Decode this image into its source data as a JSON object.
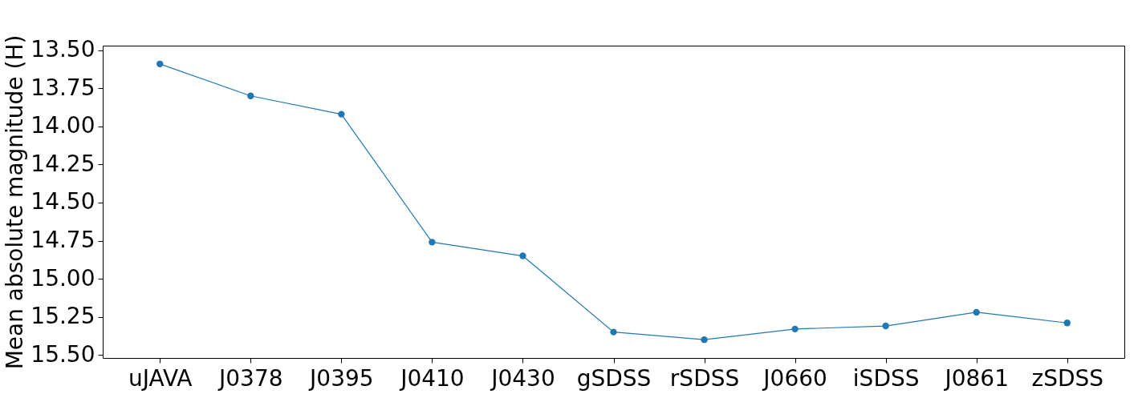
{
  "chart_data": {
    "type": "line",
    "ylabel": "Mean absolute magnitude (H)",
    "categories": [
      "uJAVA",
      "J0378",
      "J0395",
      "J0410",
      "J0430",
      "gSDSS",
      "rSDSS",
      "J0660",
      "iSDSS",
      "J0861",
      "zSDSS"
    ],
    "series": [
      {
        "color": "#1f77b4",
        "values": [
          13.59,
          13.8,
          13.92,
          14.76,
          14.85,
          15.35,
          15.4,
          15.33,
          15.31,
          15.22,
          15.29
        ]
      }
    ],
    "ylim": [
      15.52,
      13.47
    ],
    "yticks": [
      {
        "value": 13.5,
        "label": "13.50"
      },
      {
        "value": 13.75,
        "label": "13.75"
      },
      {
        "value": 14.0,
        "label": "14.00"
      },
      {
        "value": 14.25,
        "label": "14.25"
      },
      {
        "value": 14.5,
        "label": "14.50"
      },
      {
        "value": 14.75,
        "label": "14.75"
      },
      {
        "value": 15.0,
        "label": "15.00"
      },
      {
        "value": 15.25,
        "label": "15.25"
      },
      {
        "value": 15.5,
        "label": "15.50"
      }
    ],
    "grid": false,
    "marker": "circle",
    "line_style": "solid"
  }
}
